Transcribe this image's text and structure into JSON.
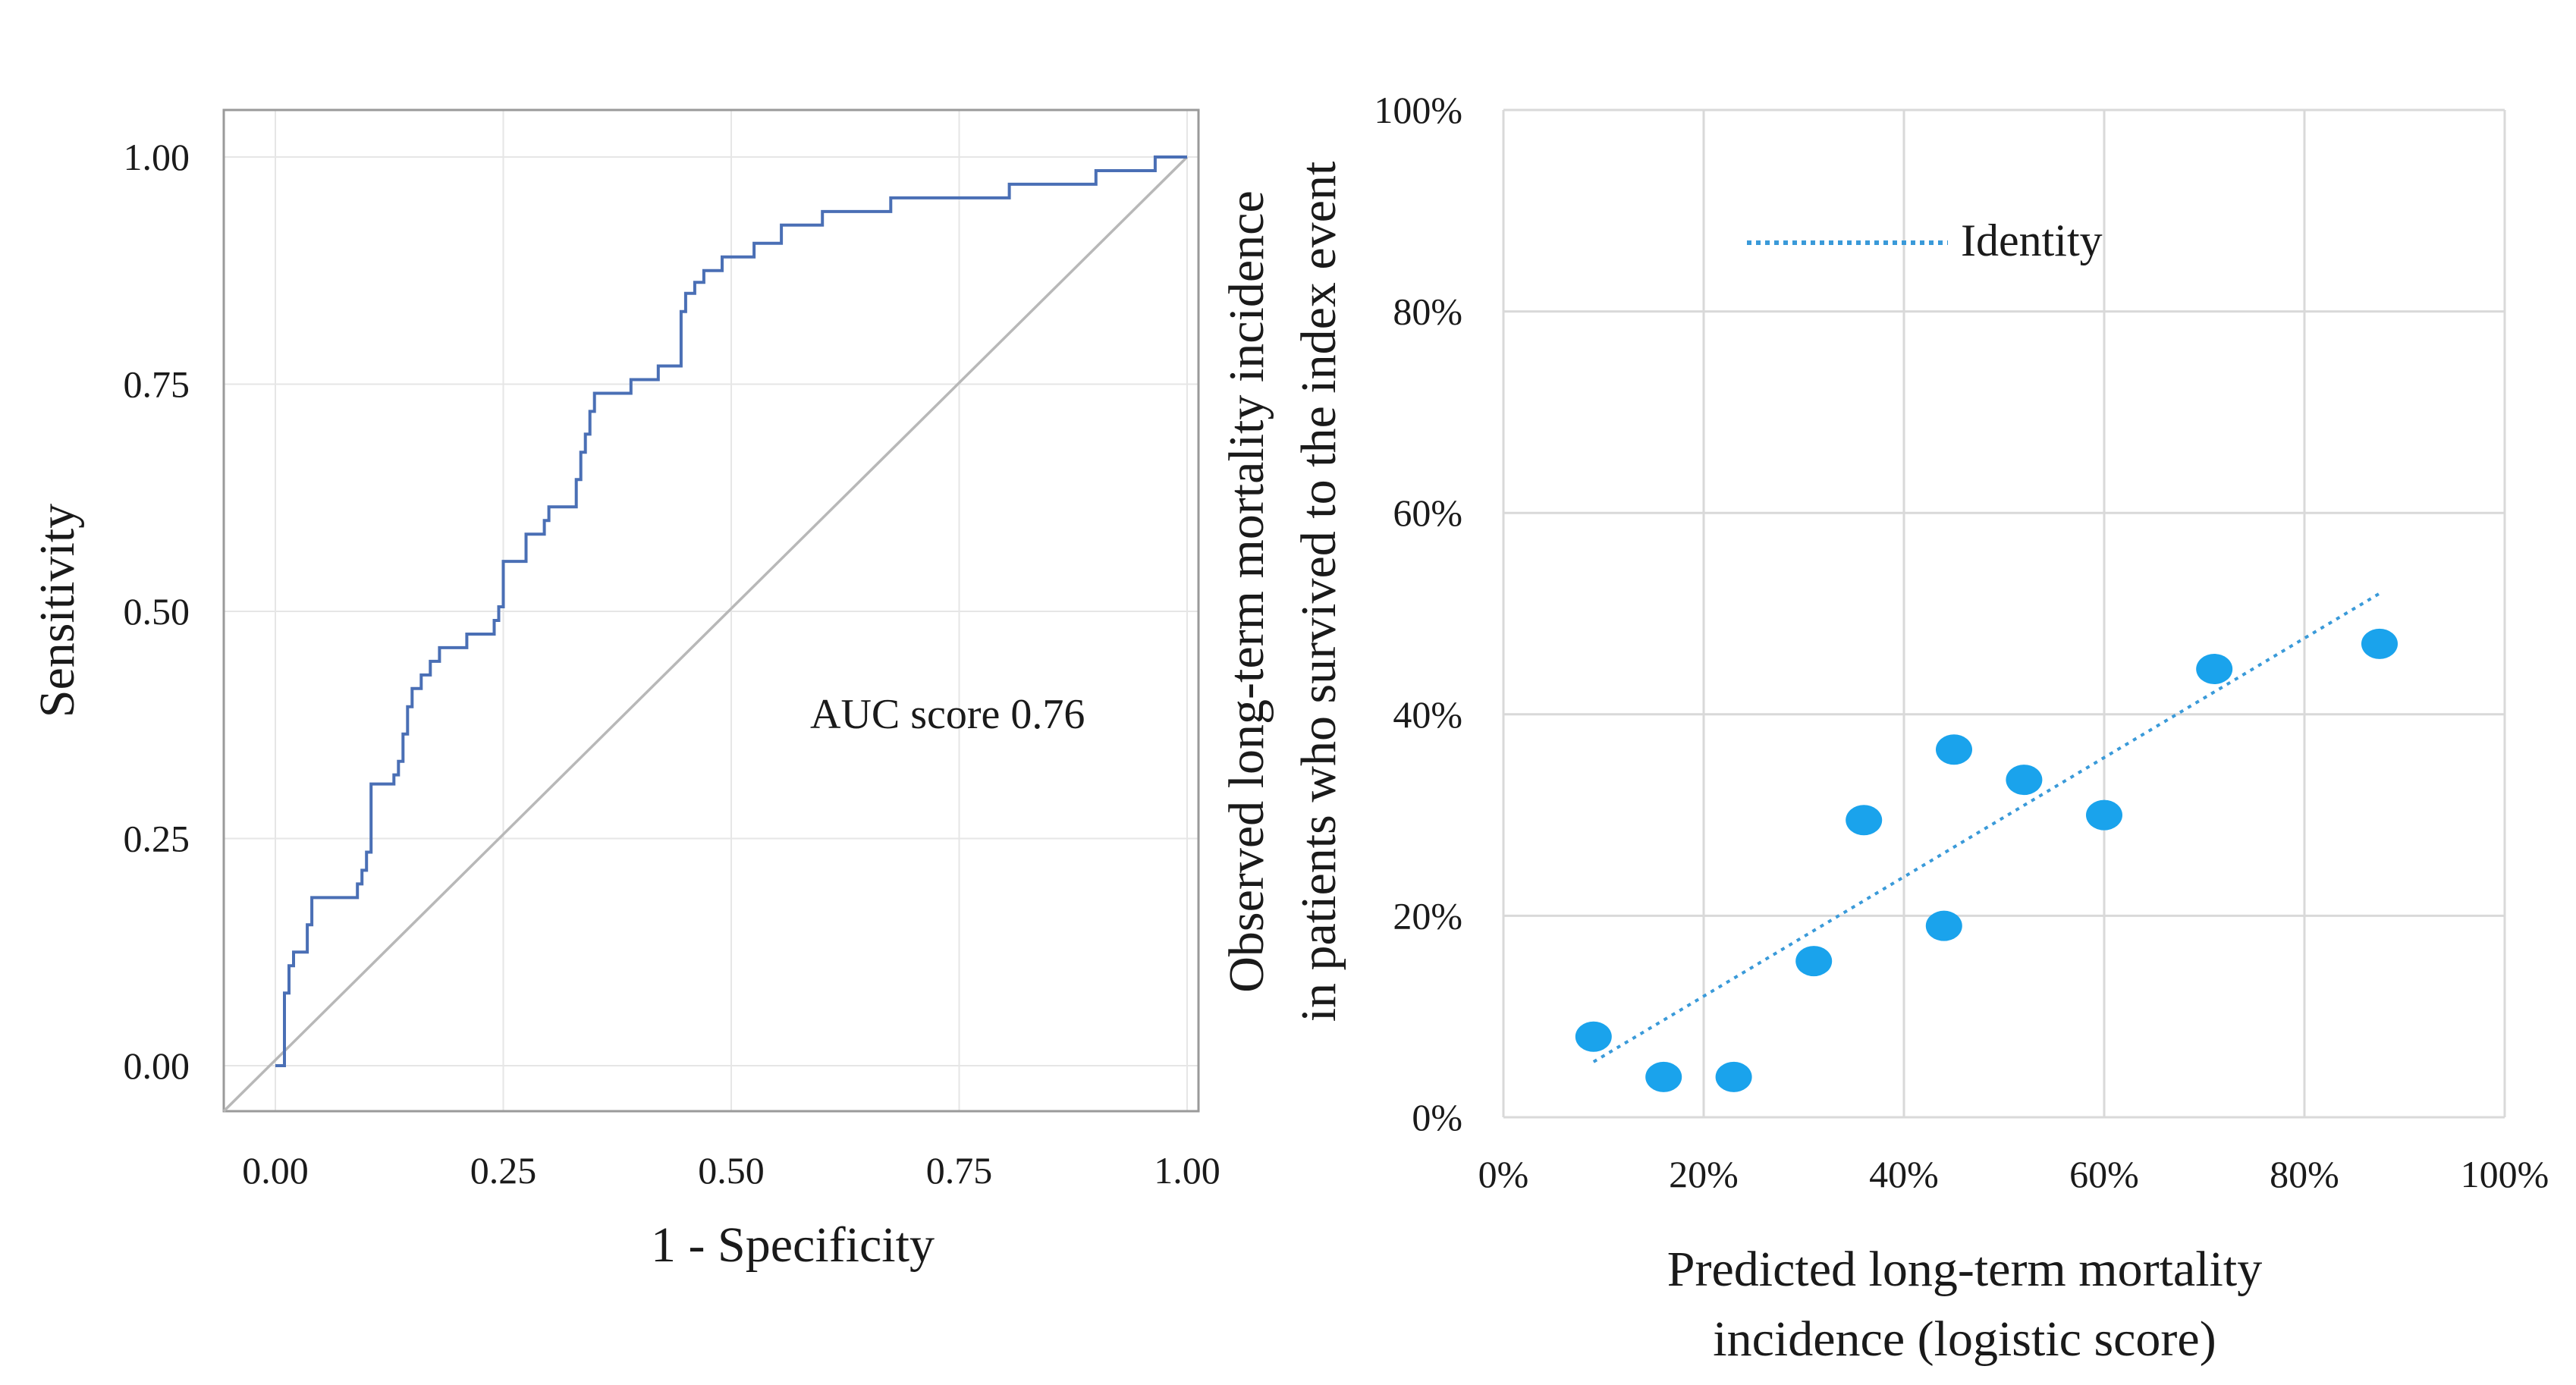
{
  "chart_data": [
    {
      "type": "line",
      "xlabel": "1 - Specificity",
      "ylabel": "Sensitivity",
      "xlim": [
        0,
        1
      ],
      "ylim": [
        0,
        1
      ],
      "xticks": [
        "0.00",
        "0.25",
        "0.50",
        "0.75",
        "1.00"
      ],
      "yticks": [
        "0.00",
        "0.25",
        "0.50",
        "0.75",
        "1.00"
      ],
      "grid": true,
      "annotation": "AUC score 0.76",
      "colors": {
        "roc": "#4a6fb5",
        "diagonal": "#b8b8b8",
        "grid": "#e6e6e6"
      },
      "series": [
        {
          "x": [
            0,
            0.01,
            0.01,
            0.015,
            0.015,
            0.02,
            0.02,
            0.035,
            0.035,
            0.04,
            0.04,
            0.05,
            0.05,
            0.09,
            0.09,
            0.095,
            0.095,
            0.1,
            0.1,
            0.105,
            0.105,
            0.13,
            0.13,
            0.135,
            0.135,
            0.14,
            0.14,
            0.145,
            0.145,
            0.15,
            0.15,
            0.16,
            0.16,
            0.17,
            0.17,
            0.18,
            0.18,
            0.21,
            0.21,
            0.24,
            0.24,
            0.245,
            0.245,
            0.25,
            0.25,
            0.275,
            0.275,
            0.295,
            0.295,
            0.3,
            0.3,
            0.33,
            0.33,
            0.335,
            0.335,
            0.34,
            0.34,
            0.345,
            0.345,
            0.35,
            0.35,
            0.39,
            0.39,
            0.42,
            0.42,
            0.445,
            0.445,
            0.45,
            0.45,
            0.46,
            0.46,
            0.47,
            0.47,
            0.49,
            0.49,
            0.525,
            0.525,
            0.555,
            0.555,
            0.6,
            0.6,
            0.675,
            0.675,
            0.805,
            0.805,
            0.9,
            0.9,
            0.965,
            0.965,
            1.0,
            1.0
          ],
          "y": [
            0,
            0,
            0.08,
            0.08,
            0.11,
            0.11,
            0.125,
            0.125,
            0.155,
            0.155,
            0.185,
            0.185,
            0.185,
            0.185,
            0.2,
            0.2,
            0.215,
            0.215,
            0.235,
            0.235,
            0.31,
            0.31,
            0.32,
            0.32,
            0.335,
            0.335,
            0.365,
            0.365,
            0.395,
            0.395,
            0.415,
            0.415,
            0.43,
            0.43,
            0.445,
            0.445,
            0.46,
            0.46,
            0.475,
            0.475,
            0.49,
            0.49,
            0.505,
            0.505,
            0.555,
            0.555,
            0.585,
            0.585,
            0.6,
            0.6,
            0.615,
            0.615,
            0.645,
            0.645,
            0.675,
            0.675,
            0.695,
            0.695,
            0.72,
            0.72,
            0.74,
            0.74,
            0.755,
            0.755,
            0.77,
            0.77,
            0.83,
            0.83,
            0.85,
            0.85,
            0.862,
            0.862,
            0.875,
            0.875,
            0.89,
            0.89,
            0.905,
            0.905,
            0.925,
            0.925,
            0.94,
            0.94,
            0.955,
            0.955,
            0.97,
            0.97,
            0.985,
            0.985,
            1.0,
            1.0,
            1.0
          ]
        }
      ]
    },
    {
      "type": "scatter",
      "xlabel": "Predicted long-term mortality incidence (logistic score)",
      "xlabel_lines": [
        "Predicted long-term mortality",
        "incidence (logistic score)"
      ],
      "ylabel": "Observed long-term mortality incidence in patients who survived to the index event",
      "ylabel_lines": [
        "Observed long-term mortality incidence",
        "in patients who survived to the index event"
      ],
      "xlim": [
        0,
        100
      ],
      "ylim": [
        0,
        100
      ],
      "xticks": [
        "0%",
        "20%",
        "40%",
        "60%",
        "80%",
        "100%"
      ],
      "yticks": [
        "0%",
        "20%",
        "40%",
        "60%",
        "80%",
        "100%"
      ],
      "grid": true,
      "legend": {
        "label": "Identity",
        "position": "top-left"
      },
      "colors": {
        "points": "#1aa3ec",
        "trend": "#3a9ad9",
        "grid": "#d9d9d9"
      },
      "points": [
        {
          "x": 9,
          "y": 8
        },
        {
          "x": 16,
          "y": 4
        },
        {
          "x": 23,
          "y": 4
        },
        {
          "x": 31,
          "y": 15.5
        },
        {
          "x": 36,
          "y": 29.5
        },
        {
          "x": 44,
          "y": 19
        },
        {
          "x": 45,
          "y": 36.5
        },
        {
          "x": 52,
          "y": 33.5
        },
        {
          "x": 60,
          "y": 30
        },
        {
          "x": 71,
          "y": 44.5
        },
        {
          "x": 87.5,
          "y": 47
        }
      ],
      "trend": {
        "x": [
          9,
          87.5
        ],
        "y": [
          5.5,
          52
        ]
      }
    }
  ]
}
